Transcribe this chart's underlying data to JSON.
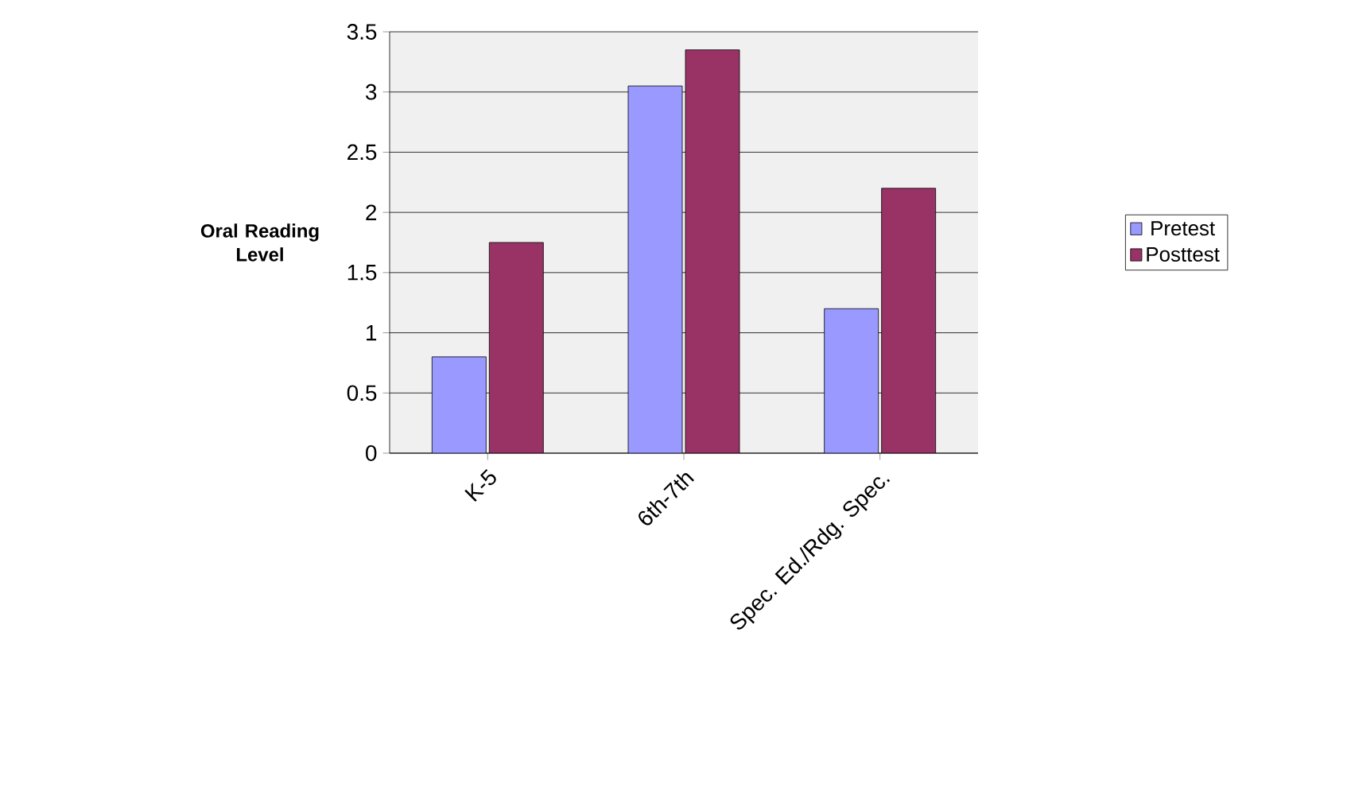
{
  "chart_data": {
    "type": "bar",
    "ylabel": "Oral Reading Level",
    "categories": [
      "K-5",
      "6th-7th",
      "Spec. Ed./Rdg. Spec."
    ],
    "series": [
      {
        "name": "Pretest",
        "color": "#9999ff",
        "values": [
          0.8,
          3.05,
          1.2
        ]
      },
      {
        "name": "Posttest",
        "color": "#993366",
        "values": [
          1.75,
          3.35,
          2.2
        ]
      }
    ],
    "ylim": [
      0,
      3.5
    ],
    "yticks": [
      0,
      0.5,
      1,
      1.5,
      2,
      2.5,
      3,
      3.5
    ],
    "grid": "y",
    "legend": "right"
  }
}
